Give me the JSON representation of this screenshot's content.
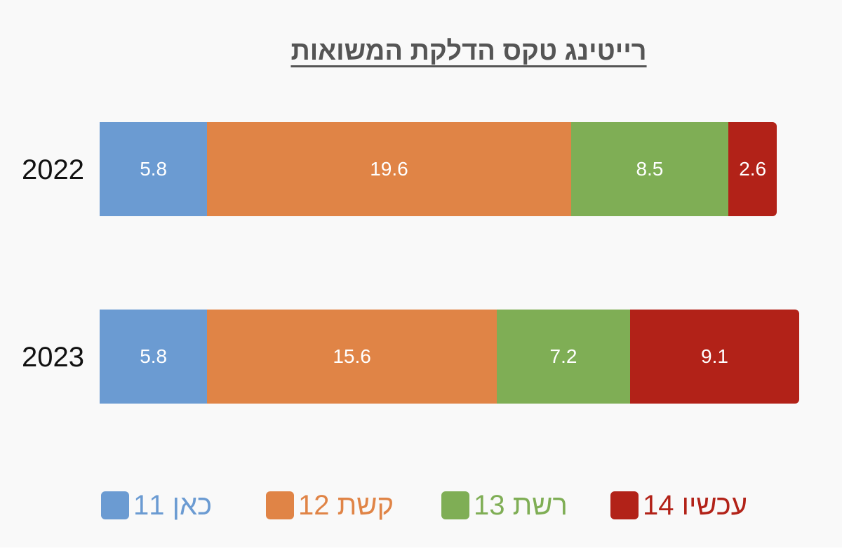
{
  "chart_data": {
    "type": "bar",
    "orientation": "horizontal",
    "stacked": true,
    "title": "רייטינג טקס הדלקת המשואות",
    "categories": [
      "2022",
      "2023"
    ],
    "series": [
      {
        "name": "כאן 11",
        "color": "#6b9bd2",
        "values": [
          5.8,
          5.8
        ]
      },
      {
        "name": "קשת 12",
        "color": "#e08446",
        "values": [
          19.6,
          15.6
        ]
      },
      {
        "name": "רשת 13",
        "color": "#7fae55",
        "values": [
          8.5,
          7.2
        ]
      },
      {
        "name": "עכשיו 14",
        "color": "#b22218",
        "values": [
          2.6,
          9.1
        ]
      }
    ],
    "value_labels": [
      [
        "5.8",
        "19.6",
        "8.5",
        "2.6"
      ],
      [
        "5.8",
        "15.6",
        "7.2",
        "9.1"
      ]
    ],
    "xlim": [
      0,
      40
    ],
    "grid": false,
    "axes_visible": false,
    "legend_position": "bottom"
  }
}
